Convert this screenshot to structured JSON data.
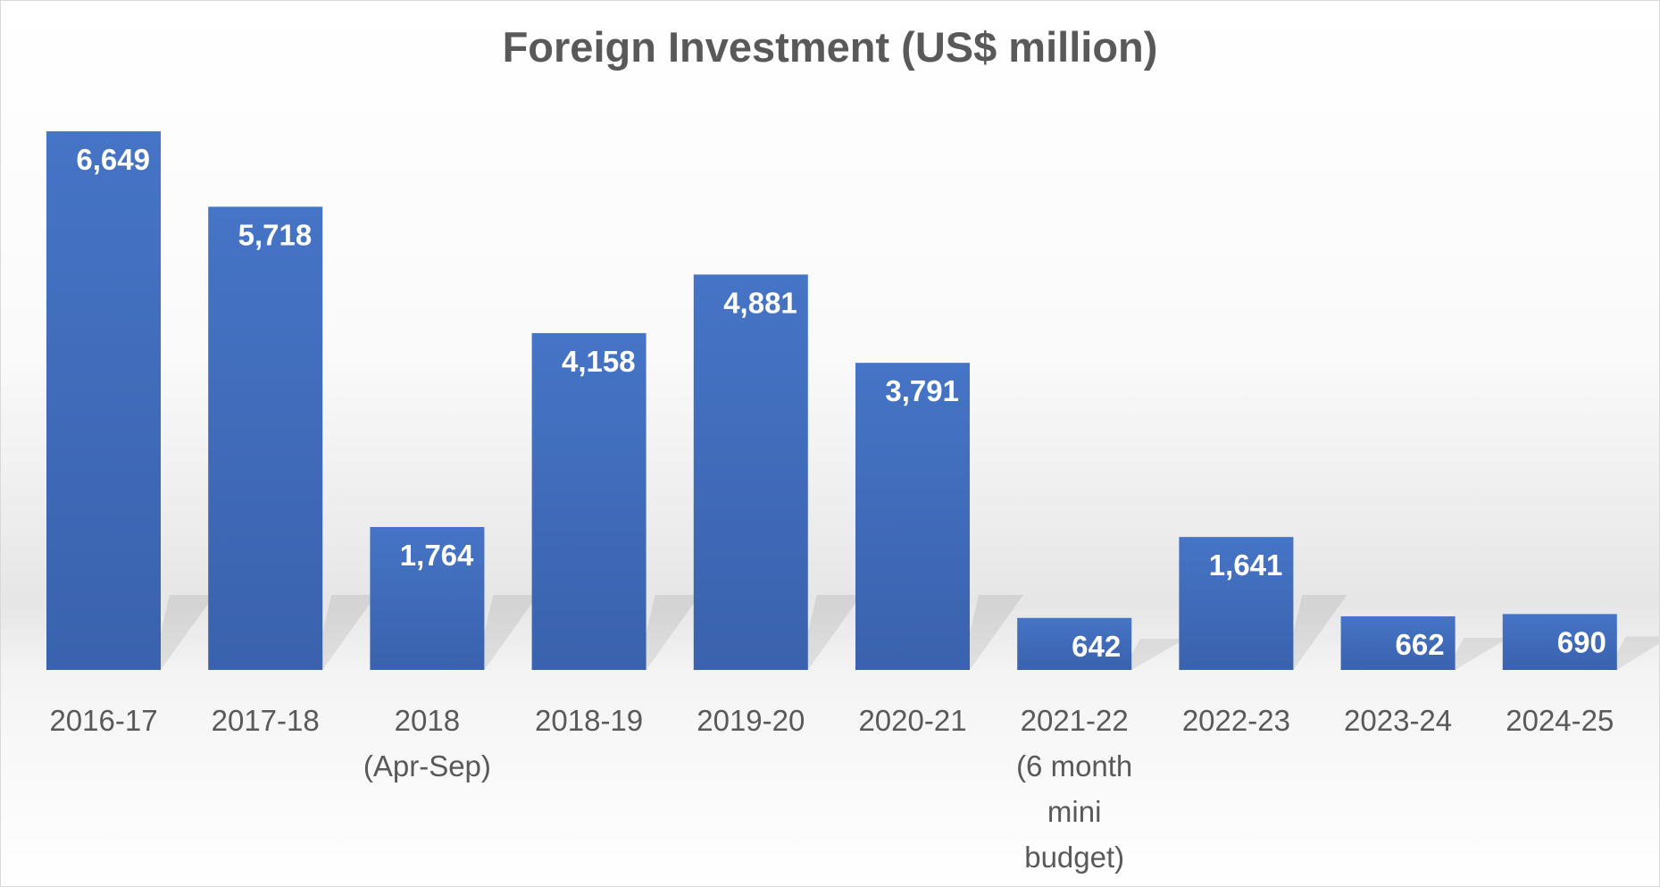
{
  "chart_data": {
    "type": "bar",
    "title": "Foreign Investment (US$ million)",
    "xlabel": "",
    "ylabel": "",
    "categories": [
      "2016-17",
      "2017-18",
      "2018\n(Apr-Sep)",
      "2018-19",
      "2019-20",
      "2020-21",
      "2021-22\n(6 month\nmini\nbudget)",
      "2022-23",
      "2023-24",
      "2024-25"
    ],
    "values": [
      6649,
      5718,
      1764,
      4158,
      4881,
      3791,
      642,
      1641,
      662,
      690
    ],
    "data_labels": [
      "6,649",
      "5,718",
      "1,764",
      "4,158",
      "4,881",
      "3,791",
      "642",
      "1,641",
      "662",
      "690"
    ],
    "grid": false,
    "legend": "none",
    "bar_color": "#4472C4"
  }
}
